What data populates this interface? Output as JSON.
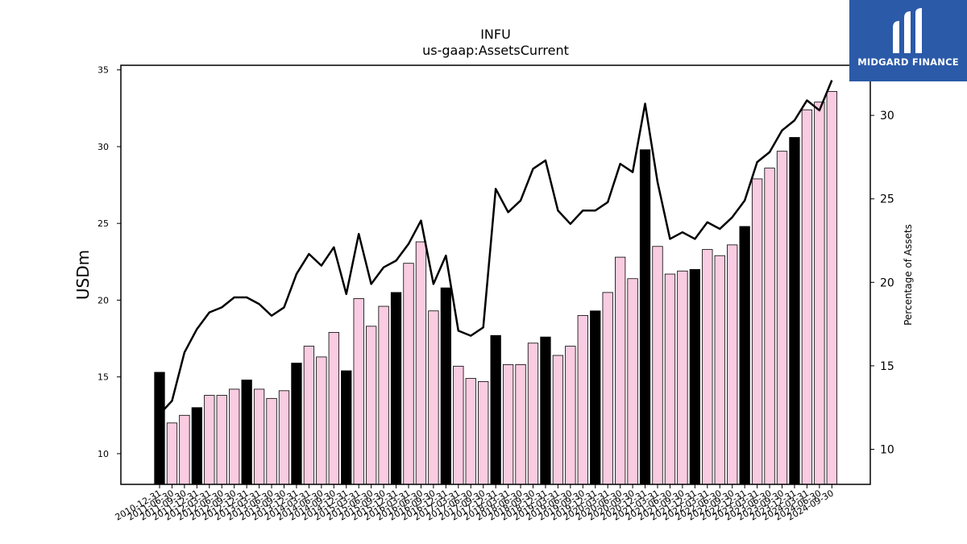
{
  "chart_data": {
    "type": "bar",
    "title": "INFU",
    "subtitle": "us-gaap:AssetsCurrent",
    "ylabel": "USDm",
    "y2label": "Percentage of Assets",
    "ylim": [
      8,
      35.3
    ],
    "y2lim": [
      7.9,
      33
    ],
    "yticks": [
      10,
      15,
      20,
      25,
      30,
      35
    ],
    "y2ticks": [
      10,
      15,
      20,
      25,
      30
    ],
    "grid": false,
    "categories": [
      "2010-12-31",
      "2011-06-30",
      "2011-09-30",
      "2011-12-31",
      "2012-03-31",
      "2012-06-30",
      "2012-09-30",
      "2012-12-31",
      "2013-03-31",
      "2013-06-30",
      "2013-09-30",
      "2013-12-31",
      "2014-03-31",
      "2014-06-30",
      "2014-09-30",
      "2014-12-31",
      "2015-03-31",
      "2015-06-30",
      "2015-09-30",
      "2015-12-31",
      "2016-03-31",
      "2016-06-30",
      "2016-09-30",
      "2016-12-31",
      "2017-03-31",
      "2017-06-30",
      "2017-09-30",
      "2017-12-31",
      "2018-03-31",
      "2018-06-30",
      "2018-09-30",
      "2018-12-31",
      "2019-03-31",
      "2019-06-30",
      "2019-09-30",
      "2019-12-31",
      "2020-03-31",
      "2020-06-30",
      "2020-09-30",
      "2020-12-31",
      "2021-03-31",
      "2021-06-30",
      "2021-09-30",
      "2021-12-31",
      "2022-03-31",
      "2022-06-30",
      "2022-09-30",
      "2022-12-31",
      "2023-03-31",
      "2023-06-30",
      "2023-09-30",
      "2023-12-31",
      "2024-03-31",
      "2024-06-30",
      "2024-09-30"
    ],
    "series": [
      {
        "type": "bar",
        "values": [
          15.3,
          12.0,
          12.5,
          13.0,
          13.8,
          13.8,
          14.2,
          14.8,
          14.2,
          13.6,
          14.1,
          15.9,
          17.0,
          16.3,
          17.9,
          15.4,
          20.1,
          18.3,
          19.6,
          20.5,
          22.4,
          23.8,
          19.3,
          20.8,
          15.7,
          14.9,
          14.7,
          17.7,
          15.8,
          15.8,
          17.2,
          17.6,
          16.4,
          17.0,
          19.0,
          19.3,
          20.5,
          22.8,
          21.4,
          29.8,
          23.5,
          21.7,
          21.9,
          22.0,
          23.3,
          22.9,
          23.6,
          24.8,
          27.9,
          28.6,
          29.7,
          30.6,
          32.4,
          32.9,
          33.6
        ],
        "highlight_indices": [
          0,
          3,
          7,
          11,
          15,
          19,
          23,
          27,
          31,
          35,
          39,
          43,
          47,
          51
        ],
        "highlight_color": "#000000",
        "color": "#f9cce1"
      },
      {
        "type": "line",
        "axis": "right",
        "color": "#000000",
        "values": [
          12.1,
          12.9,
          15.8,
          17.2,
          18.2,
          18.5,
          19.1,
          19.1,
          18.7,
          18.0,
          18.5,
          20.5,
          21.7,
          21.0,
          22.1,
          19.3,
          22.9,
          19.9,
          20.9,
          21.3,
          22.3,
          23.7,
          19.9,
          21.6,
          17.1,
          16.8,
          17.3,
          25.6,
          24.2,
          24.9,
          26.8,
          27.3,
          24.3,
          23.5,
          24.3,
          24.3,
          24.8,
          27.1,
          26.6,
          30.7,
          26.0,
          22.6,
          23.0,
          22.6,
          23.6,
          23.2,
          23.9,
          24.9,
          27.2,
          27.8,
          29.1,
          29.7,
          30.9,
          30.3,
          32.1
        ]
      }
    ]
  },
  "logo": {
    "text": "MIDGARD FINANCE"
  }
}
